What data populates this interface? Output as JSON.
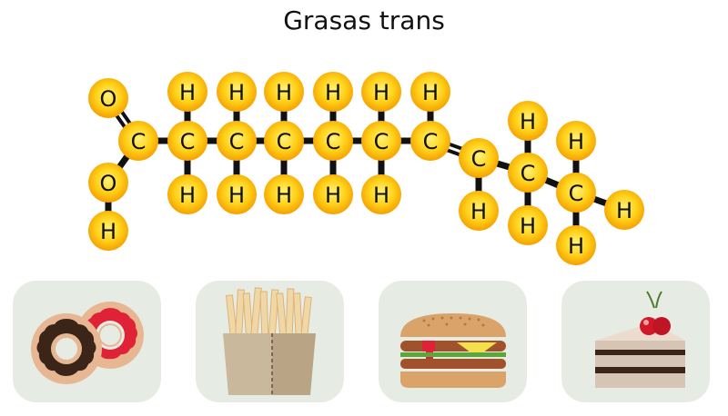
{
  "title": "Grasas trans",
  "molecule": {
    "atoms": [
      {
        "id": "o1",
        "el": "O"
      },
      {
        "id": "c1",
        "el": "C"
      },
      {
        "id": "o2",
        "el": "O"
      },
      {
        "id": "h0",
        "el": "H"
      },
      {
        "id": "c2",
        "el": "C"
      },
      {
        "id": "h2u",
        "el": "H"
      },
      {
        "id": "h2d",
        "el": "H"
      },
      {
        "id": "c3",
        "el": "C"
      },
      {
        "id": "h3u",
        "el": "H"
      },
      {
        "id": "h3d",
        "el": "H"
      },
      {
        "id": "c4",
        "el": "C"
      },
      {
        "id": "h4u",
        "el": "H"
      },
      {
        "id": "h4d",
        "el": "H"
      },
      {
        "id": "c5",
        "el": "C"
      },
      {
        "id": "h5u",
        "el": "H"
      },
      {
        "id": "h5d",
        "el": "H"
      },
      {
        "id": "c6",
        "el": "C"
      },
      {
        "id": "h6u",
        "el": "H"
      },
      {
        "id": "h6d",
        "el": "H"
      },
      {
        "id": "c7",
        "el": "C"
      },
      {
        "id": "h7u",
        "el": "H"
      },
      {
        "id": "c8",
        "el": "C"
      },
      {
        "id": "h8d",
        "el": "H"
      },
      {
        "id": "c9",
        "el": "C"
      },
      {
        "id": "h9u",
        "el": "H"
      },
      {
        "id": "h9d",
        "el": "H"
      },
      {
        "id": "c10",
        "el": "C"
      },
      {
        "id": "h10u",
        "el": "H"
      },
      {
        "id": "h10r",
        "el": "H"
      },
      {
        "id": "h10d",
        "el": "H"
      }
    ],
    "bonds": [
      [
        "o1",
        "c1",
        2
      ],
      [
        "c1",
        "o2",
        1
      ],
      [
        "o2",
        "h0",
        1
      ],
      [
        "c1",
        "c2",
        1
      ],
      [
        "c2",
        "h2u",
        1
      ],
      [
        "c2",
        "h2d",
        1
      ],
      [
        "c2",
        "c3",
        1
      ],
      [
        "c3",
        "h3u",
        1
      ],
      [
        "c3",
        "h3d",
        1
      ],
      [
        "c3",
        "c4",
        1
      ],
      [
        "c4",
        "h4u",
        1
      ],
      [
        "c4",
        "h4d",
        1
      ],
      [
        "c4",
        "c5",
        1
      ],
      [
        "c5",
        "h5u",
        1
      ],
      [
        "c5",
        "h5d",
        1
      ],
      [
        "c5",
        "c6",
        1
      ],
      [
        "c6",
        "h6u",
        1
      ],
      [
        "c6",
        "h6d",
        1
      ],
      [
        "c6",
        "c7",
        1
      ],
      [
        "c7",
        "h7u",
        1
      ],
      [
        "c7",
        "c8",
        2
      ],
      [
        "c8",
        "h8d",
        1
      ],
      [
        "c8",
        "c9",
        1
      ],
      [
        "c9",
        "h9u",
        1
      ],
      [
        "c9",
        "h9d",
        1
      ],
      [
        "c9",
        "c10",
        1
      ],
      [
        "c10",
        "h10u",
        1
      ],
      [
        "c10",
        "h10r",
        1
      ],
      [
        "c10",
        "h10d",
        1
      ]
    ],
    "colors": {
      "atom_center": "#fff06a",
      "atom_edge": "#f5a400",
      "bond": "#111111"
    }
  },
  "foods": [
    {
      "name": "donuts-icon"
    },
    {
      "name": "french-fries-icon"
    },
    {
      "name": "hamburger-icon"
    },
    {
      "name": "cake-slice-icon"
    }
  ],
  "colors": {
    "tile_bg": "#e6ece4"
  }
}
